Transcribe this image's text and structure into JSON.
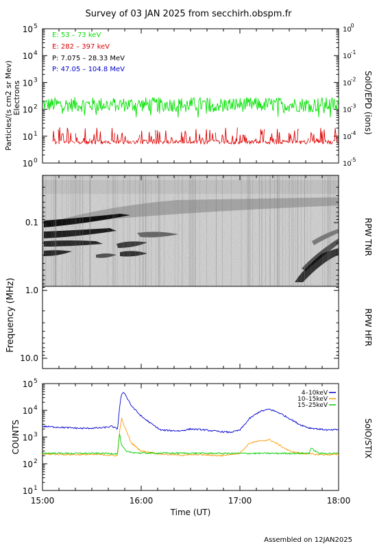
{
  "title": "Survey of 03 JAN 2025 from secchirh.obspm.fr",
  "footer": "Assembled on  12JAN2025",
  "x_axis": {
    "label": "Time (UT)",
    "ticks": [
      "15:00",
      "16:00",
      "17:00",
      "18:00"
    ],
    "range_hours": [
      15,
      18
    ]
  },
  "colors": {
    "e_low": "#00e000",
    "e_high": "#dd0000",
    "p_low": "#000000",
    "p_high": "#0000cc",
    "stix_4_10": "#0000cc",
    "stix_10_15": "#ff9900",
    "stix_15_25": "#00cc00"
  },
  "chart_data": [
    {
      "type": "line",
      "panel": "SolO/EPD",
      "ylabel_left": "Particles/(s cm2 sr Mev)",
      "ylabel_left_2": "Electrons",
      "ylabel_right": "SolO/EPD (ions)",
      "left_scale": "log",
      "right_scale": "log",
      "ylim_left": [
        1,
        100000
      ],
      "ylim_right": [
        1e-05,
        1
      ],
      "left_ticks": [
        "10^0",
        "10^1",
        "10^2",
        "10^3",
        "10^4",
        "10^5"
      ],
      "right_ticks": [
        "10^-5",
        "10^-4",
        "10^-3",
        "10^-2",
        "10^-1",
        "10^0"
      ],
      "legend": [
        {
          "name": "E: 53 – 73 keV",
          "color_key": "e_low"
        },
        {
          "name": "E: 282 – 397 keV",
          "color_key": "e_high"
        },
        {
          "name": "P: 7.075 – 28.33 MeV",
          "color_key": "p_low"
        },
        {
          "name": "P: 47.05 – 104.8 MeV",
          "color_key": "p_high"
        }
      ],
      "series": [
        {
          "name": "E: 53 – 73 keV",
          "typical_value": 150,
          "range": [
            50,
            350
          ]
        },
        {
          "name": "E: 282 – 397 keV",
          "typical_value": 6,
          "range": [
            4,
            20
          ]
        }
      ]
    },
    {
      "type": "heatmap",
      "panel": "RPW",
      "ylabel": "Frequency (MHz)",
      "yscale": "log",
      "y_ticks": [
        "0.1",
        "1.0",
        "10.0"
      ],
      "subpanels": [
        "RPW TNR",
        "RPW HFR"
      ],
      "features": [
        "drifting emission bands below 0.1 MHz from 15:00 to 15:50",
        "diffuse enhancement around 0.05–0.07 MHz from 15:20 to 18:00",
        "drifting type III burst near 17:35–18:00 from 0.1 to 0.8 MHz"
      ]
    },
    {
      "type": "line",
      "panel": "SolO/STIX",
      "ylabel_left": "COUNTS",
      "ylabel_right": "SolO/STIX",
      "yscale": "log",
      "ylim": [
        10,
        100000
      ],
      "y_ticks": [
        "10^1",
        "10^2",
        "10^3",
        "10^4",
        "10^5"
      ],
      "legend": [
        {
          "name": "4–10keV",
          "color_key": "stix_4_10"
        },
        {
          "name": "10–15keV",
          "color_key": "stix_10_15"
        },
        {
          "name": "15–25keV",
          "color_key": "stix_15_25"
        }
      ],
      "series": [
        {
          "name": "4–10keV",
          "x": [
            15.0,
            15.2,
            15.4,
            15.6,
            15.7,
            15.76,
            15.78,
            15.8,
            15.83,
            15.9,
            16.0,
            16.1,
            16.2,
            16.4,
            16.5,
            16.6,
            16.8,
            16.9,
            17.0,
            17.1,
            17.2,
            17.3,
            17.4,
            17.5,
            17.6,
            17.7,
            17.8,
            17.9,
            18.0
          ],
          "y": [
            2500,
            2300,
            2100,
            2200,
            2500,
            2000,
            12000,
            40000,
            45000,
            15000,
            6000,
            3200,
            1800,
            1700,
            2000,
            1900,
            1600,
            1500,
            1800,
            5000,
            9000,
            11000,
            8000,
            5000,
            3000,
            2200,
            2000,
            1800,
            1900
          ]
        },
        {
          "name": "10–15keV",
          "x": [
            15.0,
            15.3,
            15.6,
            15.76,
            15.78,
            15.8,
            15.83,
            15.9,
            16.0,
            16.2,
            16.4,
            16.6,
            16.8,
            17.0,
            17.1,
            17.2,
            17.3,
            17.4,
            17.5,
            17.6,
            17.8,
            18.0
          ],
          "y": [
            230,
            220,
            220,
            200,
            1500,
            5000,
            2500,
            600,
            300,
            230,
            210,
            220,
            200,
            250,
            600,
            700,
            800,
            500,
            300,
            250,
            220,
            220
          ]
        },
        {
          "name": "15–25keV",
          "x": [
            15.0,
            15.3,
            15.6,
            15.76,
            15.78,
            15.8,
            15.85,
            16.0,
            16.4,
            16.8,
            17.2,
            17.6,
            17.7,
            17.72,
            17.8,
            18.0
          ],
          "y": [
            250,
            245,
            245,
            240,
            1400,
            500,
            280,
            250,
            250,
            245,
            245,
            245,
            250,
            380,
            245,
            245
          ]
        }
      ]
    }
  ]
}
